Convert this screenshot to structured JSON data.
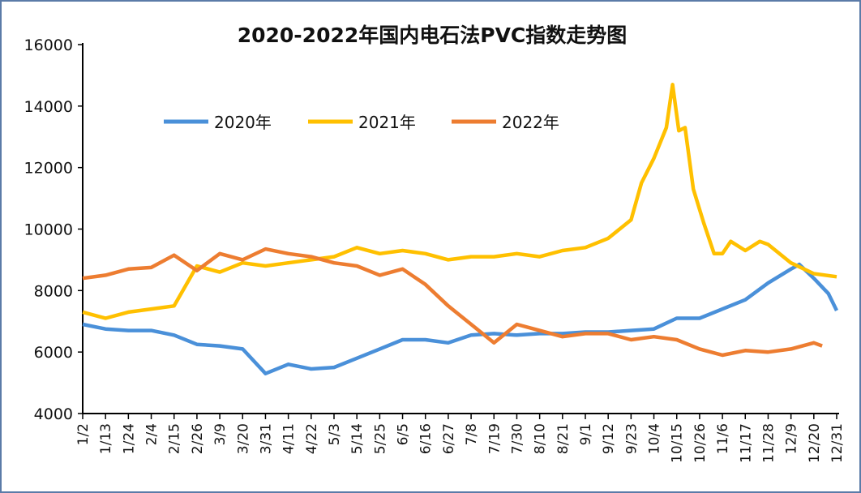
{
  "chart_data": {
    "type": "line",
    "title": "2020-2022年国内电石法PVC指数走势图",
    "xlabel": "",
    "ylabel": "",
    "ylim": [
      4000,
      16000
    ],
    "yticks": [
      4000,
      6000,
      8000,
      10000,
      12000,
      14000,
      16000
    ],
    "xticks": [
      "1/2",
      "1/13",
      "1/24",
      "2/4",
      "2/15",
      "2/26",
      "3/9",
      "3/20",
      "3/31",
      "4/11",
      "4/22",
      "5/3",
      "5/14",
      "5/25",
      "6/5",
      "6/16",
      "6/27",
      "7/8",
      "7/19",
      "7/30",
      "8/10",
      "8/21",
      "9/1",
      "9/12",
      "9/23",
      "10/4",
      "10/15",
      "10/26",
      "11/6",
      "11/17",
      "11/28",
      "12/9",
      "12/20",
      "12/31"
    ],
    "grid": false,
    "legend_placement": "top-left",
    "series": [
      {
        "name": "2020年",
        "color": "#4a90d9",
        "points": [
          [
            "1/2",
            6900
          ],
          [
            "1/13",
            6750
          ],
          [
            "1/24",
            6700
          ],
          [
            "2/4",
            6700
          ],
          [
            "2/15",
            6550
          ],
          [
            "2/26",
            6250
          ],
          [
            "3/9",
            6200
          ],
          [
            "3/20",
            6100
          ],
          [
            "3/31",
            5300
          ],
          [
            "4/11",
            5600
          ],
          [
            "4/22",
            5450
          ],
          [
            "5/3",
            5500
          ],
          [
            "5/14",
            5800
          ],
          [
            "5/25",
            6100
          ],
          [
            "6/5",
            6400
          ],
          [
            "6/16",
            6400
          ],
          [
            "6/27",
            6300
          ],
          [
            "7/8",
            6550
          ],
          [
            "7/19",
            6600
          ],
          [
            "7/30",
            6550
          ],
          [
            "8/10",
            6600
          ],
          [
            "8/21",
            6600
          ],
          [
            "9/1",
            6650
          ],
          [
            "9/12",
            6650
          ],
          [
            "9/23",
            6700
          ],
          [
            "10/4",
            6750
          ],
          [
            "10/15",
            7100
          ],
          [
            "10/26",
            7100
          ],
          [
            "11/6",
            7400
          ],
          [
            "11/17",
            7700
          ],
          [
            "11/28",
            8250
          ],
          [
            "12/9",
            8700
          ],
          [
            "12/13",
            8850
          ],
          [
            "12/20",
            8400
          ],
          [
            "12/27",
            7900
          ],
          [
            "12/31",
            7350
          ]
        ]
      },
      {
        "name": "2021年",
        "color": "#ffc000",
        "points": [
          [
            "1/2",
            7300
          ],
          [
            "1/13",
            7100
          ],
          [
            "1/24",
            7300
          ],
          [
            "2/4",
            7400
          ],
          [
            "2/15",
            7500
          ],
          [
            "2/26",
            8800
          ],
          [
            "3/9",
            8600
          ],
          [
            "3/20",
            8900
          ],
          [
            "3/31",
            8800
          ],
          [
            "4/11",
            8900
          ],
          [
            "4/22",
            9000
          ],
          [
            "5/3",
            9100
          ],
          [
            "5/14",
            9400
          ],
          [
            "5/25",
            9200
          ],
          [
            "6/5",
            9300
          ],
          [
            "6/16",
            9200
          ],
          [
            "6/27",
            9000
          ],
          [
            "7/8",
            9100
          ],
          [
            "7/19",
            9100
          ],
          [
            "7/30",
            9200
          ],
          [
            "8/10",
            9100
          ],
          [
            "8/21",
            9300
          ],
          [
            "9/1",
            9400
          ],
          [
            "9/12",
            9700
          ],
          [
            "9/23",
            10300
          ],
          [
            "9/28",
            11500
          ],
          [
            "10/4",
            12300
          ],
          [
            "10/10",
            13300
          ],
          [
            "10/13",
            14700
          ],
          [
            "10/16",
            13200
          ],
          [
            "10/19",
            13300
          ],
          [
            "10/23",
            11300
          ],
          [
            "10/28",
            10200
          ],
          [
            "11/2",
            9200
          ],
          [
            "11/6",
            9200
          ],
          [
            "11/10",
            9600
          ],
          [
            "11/17",
            9300
          ],
          [
            "11/24",
            9600
          ],
          [
            "11/28",
            9500
          ],
          [
            "12/9",
            8900
          ],
          [
            "12/20",
            8550
          ],
          [
            "12/31",
            8450
          ]
        ]
      },
      {
        "name": "2022年",
        "color": "#ed7d31",
        "points": [
          [
            "1/2",
            8400
          ],
          [
            "1/13",
            8500
          ],
          [
            "1/24",
            8700
          ],
          [
            "2/4",
            8750
          ],
          [
            "2/15",
            9150
          ],
          [
            "2/26",
            8650
          ],
          [
            "3/9",
            9200
          ],
          [
            "3/20",
            9000
          ],
          [
            "3/31",
            9350
          ],
          [
            "4/11",
            9200
          ],
          [
            "4/22",
            9100
          ],
          [
            "5/3",
            8900
          ],
          [
            "5/14",
            8800
          ],
          [
            "5/25",
            8500
          ],
          [
            "6/5",
            8700
          ],
          [
            "6/16",
            8200
          ],
          [
            "6/27",
            7500
          ],
          [
            "7/8",
            6900
          ],
          [
            "7/19",
            6300
          ],
          [
            "7/30",
            6900
          ],
          [
            "8/10",
            6700
          ],
          [
            "8/21",
            6500
          ],
          [
            "9/1",
            6600
          ],
          [
            "9/12",
            6600
          ],
          [
            "9/23",
            6400
          ],
          [
            "10/4",
            6500
          ],
          [
            "10/15",
            6400
          ],
          [
            "10/26",
            6100
          ],
          [
            "11/6",
            5900
          ],
          [
            "11/17",
            6050
          ],
          [
            "11/28",
            6000
          ],
          [
            "12/9",
            6100
          ],
          [
            "12/20",
            6300
          ],
          [
            "12/24",
            6200
          ]
        ]
      }
    ]
  }
}
